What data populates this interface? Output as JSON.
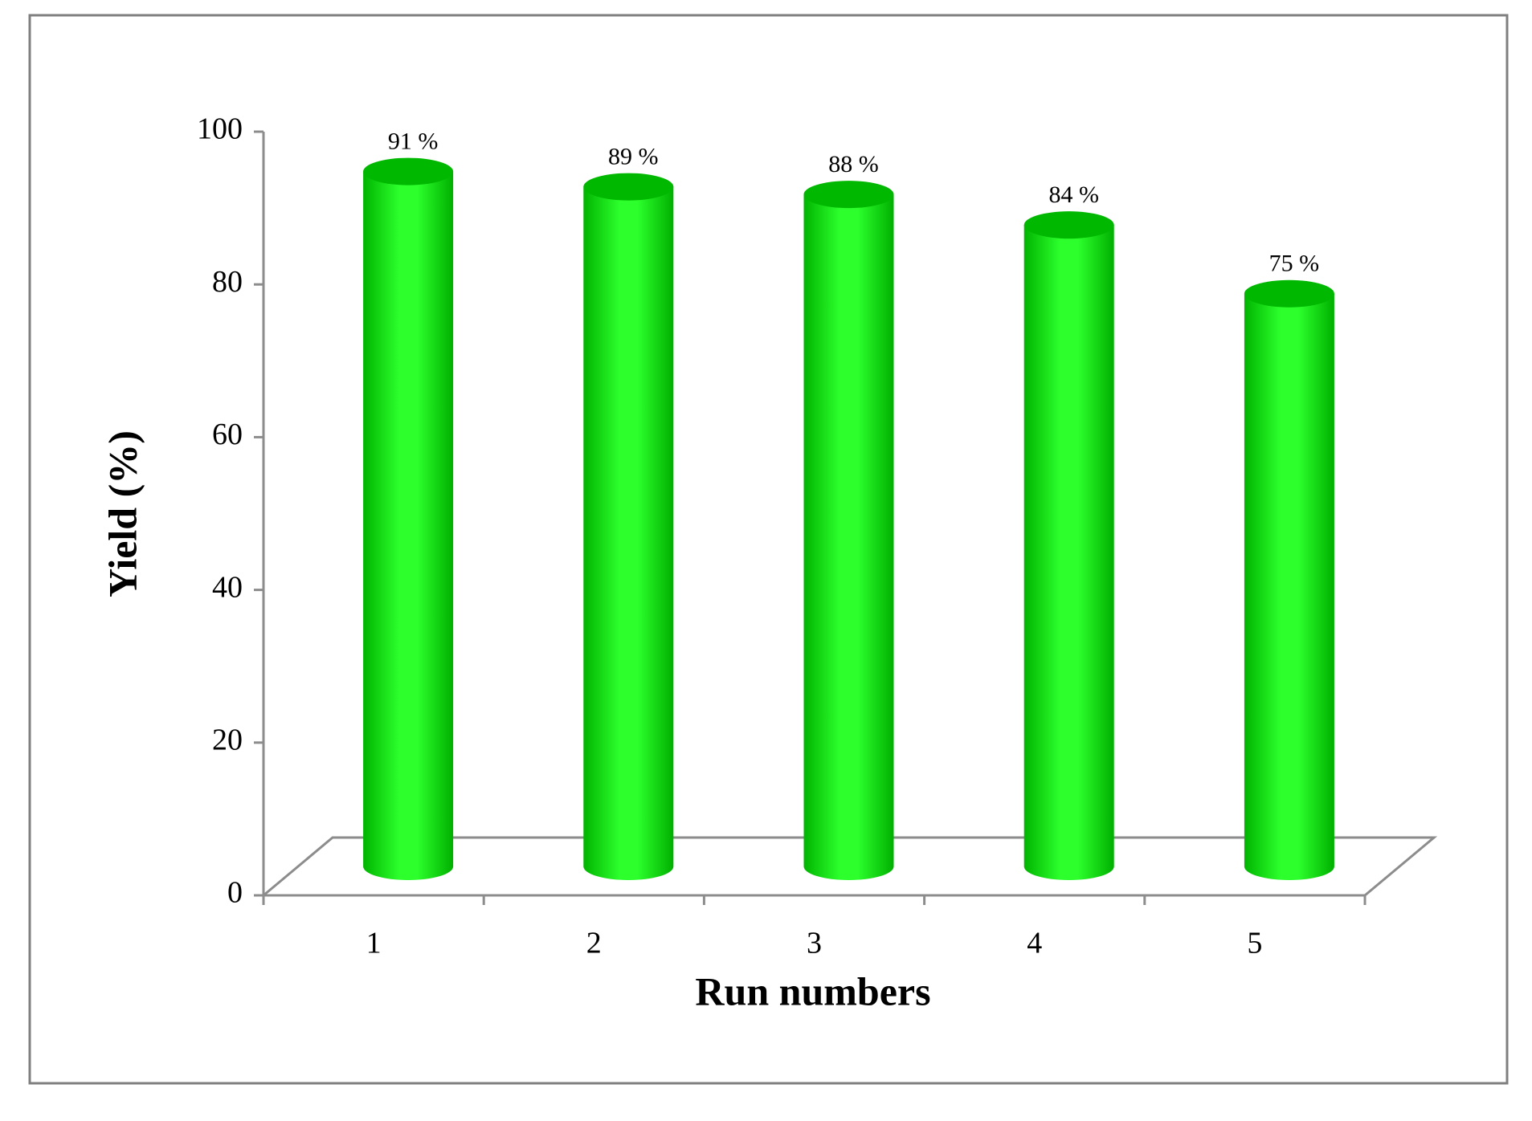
{
  "chart_data": {
    "type": "bar",
    "x_label": "Run numbers",
    "y_label": "Yield (%)",
    "categories": [
      "1",
      "2",
      "3",
      "4",
      "5"
    ],
    "values": [
      91,
      89,
      88,
      84,
      75
    ],
    "value_labels": [
      "91 %",
      "89 %",
      "88 %",
      "84 %",
      "75 %"
    ],
    "color": "#22ee22",
    "ylim": [
      0,
      100
    ],
    "yticks": [
      0,
      20,
      40,
      60,
      80,
      100
    ],
    "grid": false
  }
}
